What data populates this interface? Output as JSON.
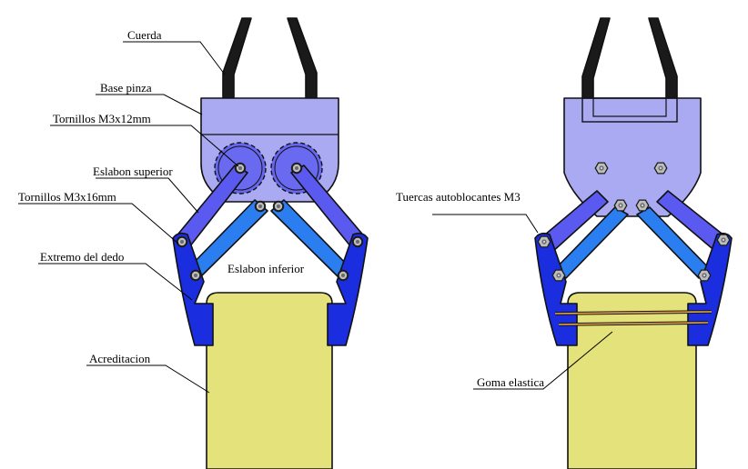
{
  "labels": {
    "cuerda": "Cuerda",
    "base_pinza": "Base pinza",
    "tornillos_m3x12": "Tornillos M3x12mm",
    "eslabon_superior": "Eslabon superior",
    "tornillos_m3x16": "Tornillos M3x16mm",
    "extremo_dedo": "Extremo del dedo",
    "eslabon_inferior": "Eslabon inferior",
    "acreditacion": "Acreditacion",
    "tuercas": "Tuercas autoblocantes M3",
    "goma": "Goma elastica"
  },
  "colors": {
    "cord": "#1a1a1a",
    "base": "#aaaaf2",
    "gear": "#6666ee",
    "upper_link": "#5a5af0",
    "lower_link": "#2a7ef0",
    "finger": "#1a2ee0",
    "card": "#e4e27a",
    "screw": "#9a9a9a",
    "band": "#e8a64a"
  }
}
